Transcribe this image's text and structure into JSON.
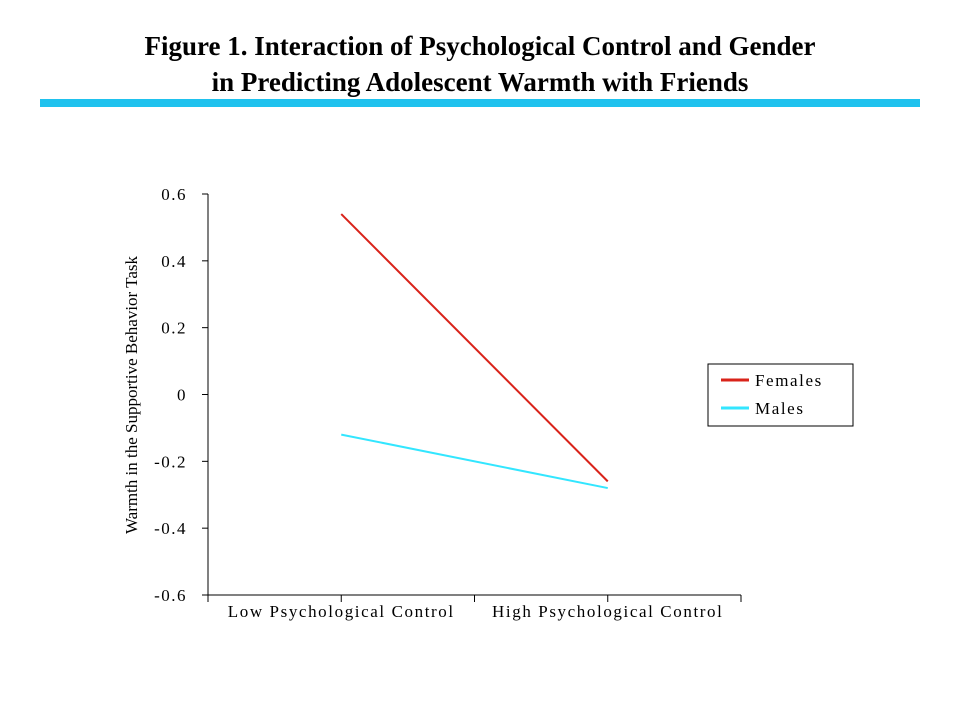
{
  "header": {
    "line1": "Figure 1. Interaction of Psychological Control and Gender",
    "line2": "in Predicting Adolescent Warmth with Friends",
    "rule_color": "#1fc2ee"
  },
  "chart_data": {
    "type": "line",
    "title": "Figure 1. Interaction of Psychological Control and Gender in Predicting Adolescent Warmth with Friends",
    "xlabel": "",
    "ylabel": "Warmth in the Supportive Behavior Task",
    "categories": [
      "Low Psychological Control",
      "High Psychological Control"
    ],
    "ylim": [
      -0.6,
      0.6
    ],
    "yticks": [
      "0.6",
      "0.4",
      "0.2",
      "0",
      "-0.2",
      "-0.4",
      "-0.6"
    ],
    "ytick_values": [
      0.6,
      0.4,
      0.2,
      0,
      -0.2,
      -0.4,
      -0.6
    ],
    "grid": false,
    "legend_position": "right",
    "series": [
      {
        "name": "Females",
        "color": "#d9231a",
        "values": [
          0.54,
          -0.26
        ]
      },
      {
        "name": "Males",
        "color": "#33e6ff",
        "values": [
          -0.12,
          -0.28
        ]
      }
    ]
  }
}
